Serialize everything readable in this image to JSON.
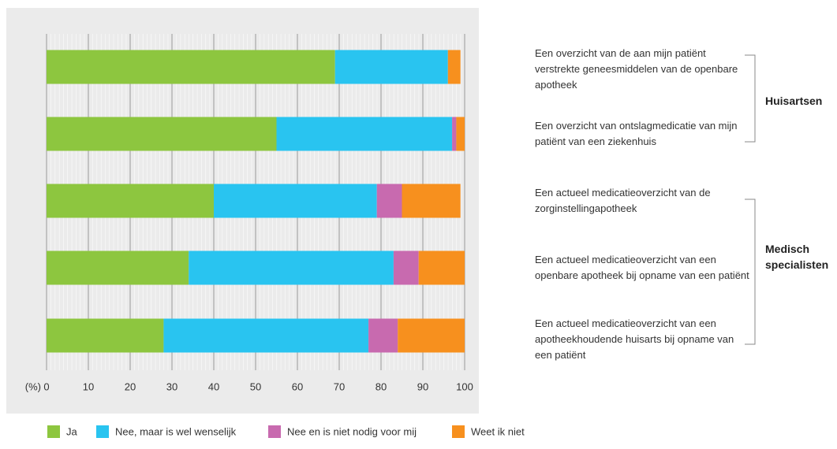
{
  "chart_data": {
    "type": "stacked-barh",
    "xlabel": "(%)",
    "categories": [
      "Een overzicht van de aan mijn patiënt verstrekte geneesmiddelen van de openbare apotheek",
      "Een overzicht van ontslagmedicatie van mijn patiënt van een ziekenhuis",
      "Een actueel medicatieoverzicht van de zorginstellingapotheek",
      "Een actueel medicatieoverzicht van een openbare apotheek bij opname van een patiënt",
      "Een actueel medicatieoverzicht van een apotheekhoudende huisarts bij opname van een patiënt"
    ],
    "groups": [
      "Huisartsen",
      "Medisch specialisten"
    ],
    "series": [
      {
        "name": "Ja",
        "color": "#8dc63f",
        "values": [
          69,
          55,
          40,
          34,
          28
        ]
      },
      {
        "name": "Nee, maar is wel wenselijk",
        "color": "#29c4f0",
        "values": [
          27,
          42,
          39,
          49,
          49
        ]
      },
      {
        "name": "Nee en is niet nodig voor mij",
        "color": "#c86aaf",
        "values": [
          0,
          1,
          6,
          6,
          7
        ]
      },
      {
        "name": "Weet ik niet",
        "color": "#f7901e",
        "values": [
          3,
          2,
          14,
          11,
          16
        ]
      }
    ],
    "xlim": [
      0,
      100
    ],
    "xticks": [
      0,
      10,
      20,
      30,
      40,
      50,
      60,
      70,
      80,
      90,
      100
    ],
    "grid": true
  }
}
